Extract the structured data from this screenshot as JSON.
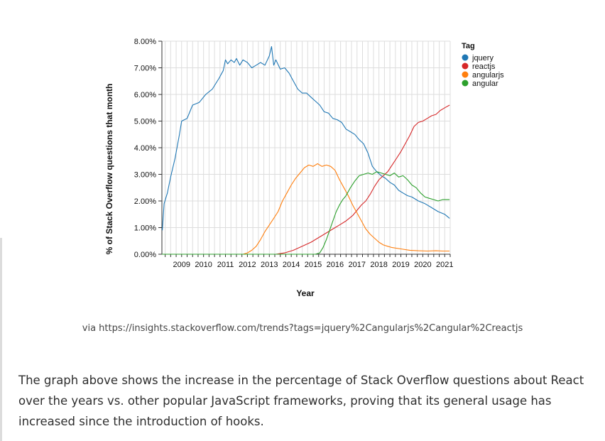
{
  "chart_data": {
    "type": "line",
    "xlabel": "Year",
    "ylabel": "% of Stack Overflow questions that month",
    "x_range": [
      2008.6,
      2021.75
    ],
    "ylim": [
      0,
      8
    ],
    "x_ticks": [
      2009,
      2010,
      2011,
      2012,
      2013,
      2014,
      2015,
      2016,
      2017,
      2018,
      2019,
      2020,
      2021
    ],
    "x_tick_labels": [
      "2009",
      "2010",
      "2011",
      "2012",
      "2013",
      "2014",
      "2015",
      "2016",
      "2017",
      "2018",
      "2019",
      "2020",
      "2021"
    ],
    "y_ticks": [
      0,
      1,
      2,
      3,
      4,
      5,
      6,
      7,
      8
    ],
    "y_tick_labels": [
      "0.00%",
      "1.00%",
      "2.00%",
      "3.00%",
      "4.00%",
      "5.00%",
      "6.00%",
      "7.00%",
      "8.00%"
    ],
    "grid": true,
    "legend": {
      "title": "Tag",
      "placement": "top-right"
    },
    "series": [
      {
        "name": "jquery",
        "color": "#1f77b4",
        "points": [
          [
            2008.62,
            0.9
          ],
          [
            2008.7,
            1.9
          ],
          [
            2008.85,
            2.3
          ],
          [
            2009.0,
            2.9
          ],
          [
            2009.2,
            3.6
          ],
          [
            2009.4,
            4.5
          ],
          [
            2009.5,
            5.0
          ],
          [
            2009.75,
            5.1
          ],
          [
            2010.0,
            5.6
          ],
          [
            2010.3,
            5.7
          ],
          [
            2010.6,
            6.0
          ],
          [
            2010.9,
            6.2
          ],
          [
            2011.2,
            6.6
          ],
          [
            2011.4,
            6.9
          ],
          [
            2011.5,
            7.3
          ],
          [
            2011.6,
            7.15
          ],
          [
            2011.75,
            7.3
          ],
          [
            2011.9,
            7.2
          ],
          [
            2012.0,
            7.35
          ],
          [
            2012.15,
            7.1
          ],
          [
            2012.3,
            7.3
          ],
          [
            2012.5,
            7.2
          ],
          [
            2012.7,
            7.0
          ],
          [
            2012.9,
            7.1
          ],
          [
            2013.1,
            7.2
          ],
          [
            2013.3,
            7.1
          ],
          [
            2013.5,
            7.45
          ],
          [
            2013.6,
            7.8
          ],
          [
            2013.7,
            7.1
          ],
          [
            2013.8,
            7.3
          ],
          [
            2014.0,
            6.95
          ],
          [
            2014.2,
            7.0
          ],
          [
            2014.4,
            6.8
          ],
          [
            2014.6,
            6.5
          ],
          [
            2014.8,
            6.2
          ],
          [
            2015.0,
            6.05
          ],
          [
            2015.2,
            6.05
          ],
          [
            2015.4,
            5.9
          ],
          [
            2015.6,
            5.75
          ],
          [
            2015.8,
            5.6
          ],
          [
            2016.0,
            5.35
          ],
          [
            2016.2,
            5.3
          ],
          [
            2016.4,
            5.1
          ],
          [
            2016.6,
            5.05
          ],
          [
            2016.8,
            4.95
          ],
          [
            2017.0,
            4.7
          ],
          [
            2017.2,
            4.6
          ],
          [
            2017.4,
            4.5
          ],
          [
            2017.6,
            4.3
          ],
          [
            2017.8,
            4.15
          ],
          [
            2018.0,
            3.8
          ],
          [
            2018.2,
            3.3
          ],
          [
            2018.4,
            3.1
          ],
          [
            2018.6,
            2.95
          ],
          [
            2018.8,
            2.85
          ],
          [
            2019.0,
            2.7
          ],
          [
            2019.2,
            2.6
          ],
          [
            2019.4,
            2.4
          ],
          [
            2019.6,
            2.3
          ],
          [
            2019.8,
            2.2
          ],
          [
            2020.0,
            2.15
          ],
          [
            2020.3,
            2.0
          ],
          [
            2020.6,
            1.9
          ],
          [
            2020.9,
            1.75
          ],
          [
            2021.2,
            1.6
          ],
          [
            2021.5,
            1.5
          ],
          [
            2021.72,
            1.35
          ]
        ]
      },
      {
        "name": "reactjs",
        "color": "#d62728",
        "points": [
          [
            2008.6,
            0.0
          ],
          [
            2013.8,
            0.0
          ],
          [
            2014.2,
            0.05
          ],
          [
            2014.6,
            0.15
          ],
          [
            2015.0,
            0.3
          ],
          [
            2015.4,
            0.45
          ],
          [
            2015.8,
            0.65
          ],
          [
            2016.1,
            0.8
          ],
          [
            2016.4,
            0.95
          ],
          [
            2016.7,
            1.1
          ],
          [
            2017.0,
            1.25
          ],
          [
            2017.3,
            1.45
          ],
          [
            2017.5,
            1.65
          ],
          [
            2017.7,
            1.85
          ],
          [
            2017.9,
            2.0
          ],
          [
            2018.1,
            2.25
          ],
          [
            2018.3,
            2.55
          ],
          [
            2018.5,
            2.8
          ],
          [
            2018.7,
            2.95
          ],
          [
            2018.9,
            3.1
          ],
          [
            2019.1,
            3.35
          ],
          [
            2019.3,
            3.6
          ],
          [
            2019.5,
            3.85
          ],
          [
            2019.7,
            4.15
          ],
          [
            2019.9,
            4.45
          ],
          [
            2020.1,
            4.8
          ],
          [
            2020.3,
            4.95
          ],
          [
            2020.5,
            5.0
          ],
          [
            2020.7,
            5.1
          ],
          [
            2020.9,
            5.2
          ],
          [
            2021.1,
            5.25
          ],
          [
            2021.3,
            5.4
          ],
          [
            2021.5,
            5.5
          ],
          [
            2021.72,
            5.6
          ]
        ]
      },
      {
        "name": "angularjs",
        "color": "#ff7f0e",
        "points": [
          [
            2008.6,
            0.0
          ],
          [
            2012.3,
            0.0
          ],
          [
            2012.5,
            0.05
          ],
          [
            2012.7,
            0.15
          ],
          [
            2012.9,
            0.3
          ],
          [
            2013.1,
            0.55
          ],
          [
            2013.3,
            0.85
          ],
          [
            2013.5,
            1.1
          ],
          [
            2013.7,
            1.35
          ],
          [
            2013.9,
            1.6
          ],
          [
            2014.1,
            2.0
          ],
          [
            2014.3,
            2.3
          ],
          [
            2014.5,
            2.6
          ],
          [
            2014.7,
            2.85
          ],
          [
            2014.9,
            3.05
          ],
          [
            2015.1,
            3.25
          ],
          [
            2015.3,
            3.35
          ],
          [
            2015.5,
            3.3
          ],
          [
            2015.7,
            3.4
          ],
          [
            2015.9,
            3.3
          ],
          [
            2016.1,
            3.35
          ],
          [
            2016.3,
            3.3
          ],
          [
            2016.5,
            3.15
          ],
          [
            2016.7,
            2.8
          ],
          [
            2016.9,
            2.5
          ],
          [
            2017.1,
            2.2
          ],
          [
            2017.3,
            1.85
          ],
          [
            2017.5,
            1.55
          ],
          [
            2017.7,
            1.25
          ],
          [
            2017.9,
            0.95
          ],
          [
            2018.1,
            0.75
          ],
          [
            2018.3,
            0.6
          ],
          [
            2018.5,
            0.45
          ],
          [
            2018.7,
            0.35
          ],
          [
            2018.9,
            0.3
          ],
          [
            2019.1,
            0.25
          ],
          [
            2019.5,
            0.2
          ],
          [
            2019.9,
            0.15
          ],
          [
            2020.3,
            0.13
          ],
          [
            2020.7,
            0.12
          ],
          [
            2021.1,
            0.13
          ],
          [
            2021.4,
            0.12
          ],
          [
            2021.72,
            0.12
          ]
        ]
      },
      {
        "name": "angular",
        "color": "#2ca02c",
        "points": [
          [
            2008.6,
            0.0
          ],
          [
            2015.6,
            0.0
          ],
          [
            2015.8,
            0.05
          ],
          [
            2015.95,
            0.25
          ],
          [
            2016.1,
            0.55
          ],
          [
            2016.25,
            0.9
          ],
          [
            2016.4,
            1.25
          ],
          [
            2016.55,
            1.6
          ],
          [
            2016.7,
            1.85
          ],
          [
            2016.85,
            2.05
          ],
          [
            2017.0,
            2.2
          ],
          [
            2017.2,
            2.5
          ],
          [
            2017.4,
            2.75
          ],
          [
            2017.6,
            2.95
          ],
          [
            2017.8,
            3.0
          ],
          [
            2018.0,
            3.05
          ],
          [
            2018.2,
            3.0
          ],
          [
            2018.4,
            3.1
          ],
          [
            2018.6,
            3.05
          ],
          [
            2018.8,
            3.0
          ],
          [
            2019.0,
            2.95
          ],
          [
            2019.2,
            3.05
          ],
          [
            2019.4,
            2.9
          ],
          [
            2019.6,
            2.95
          ],
          [
            2019.8,
            2.8
          ],
          [
            2020.0,
            2.6
          ],
          [
            2020.2,
            2.5
          ],
          [
            2020.4,
            2.3
          ],
          [
            2020.6,
            2.15
          ],
          [
            2020.8,
            2.1
          ],
          [
            2021.0,
            2.05
          ],
          [
            2021.2,
            2.0
          ],
          [
            2021.4,
            2.05
          ],
          [
            2021.72,
            2.05
          ]
        ]
      }
    ]
  },
  "caption": "via https://insights.stackoverflow.com/trends?tags=jquery%2Cangularjs%2Cangular%2Creactjs",
  "article_text": "The graph above shows the increase in the percentage of Stack Overflow questions about React over the years vs. other popular JavaScript frameworks, proving that its general usage has increased since the introduction of hooks."
}
